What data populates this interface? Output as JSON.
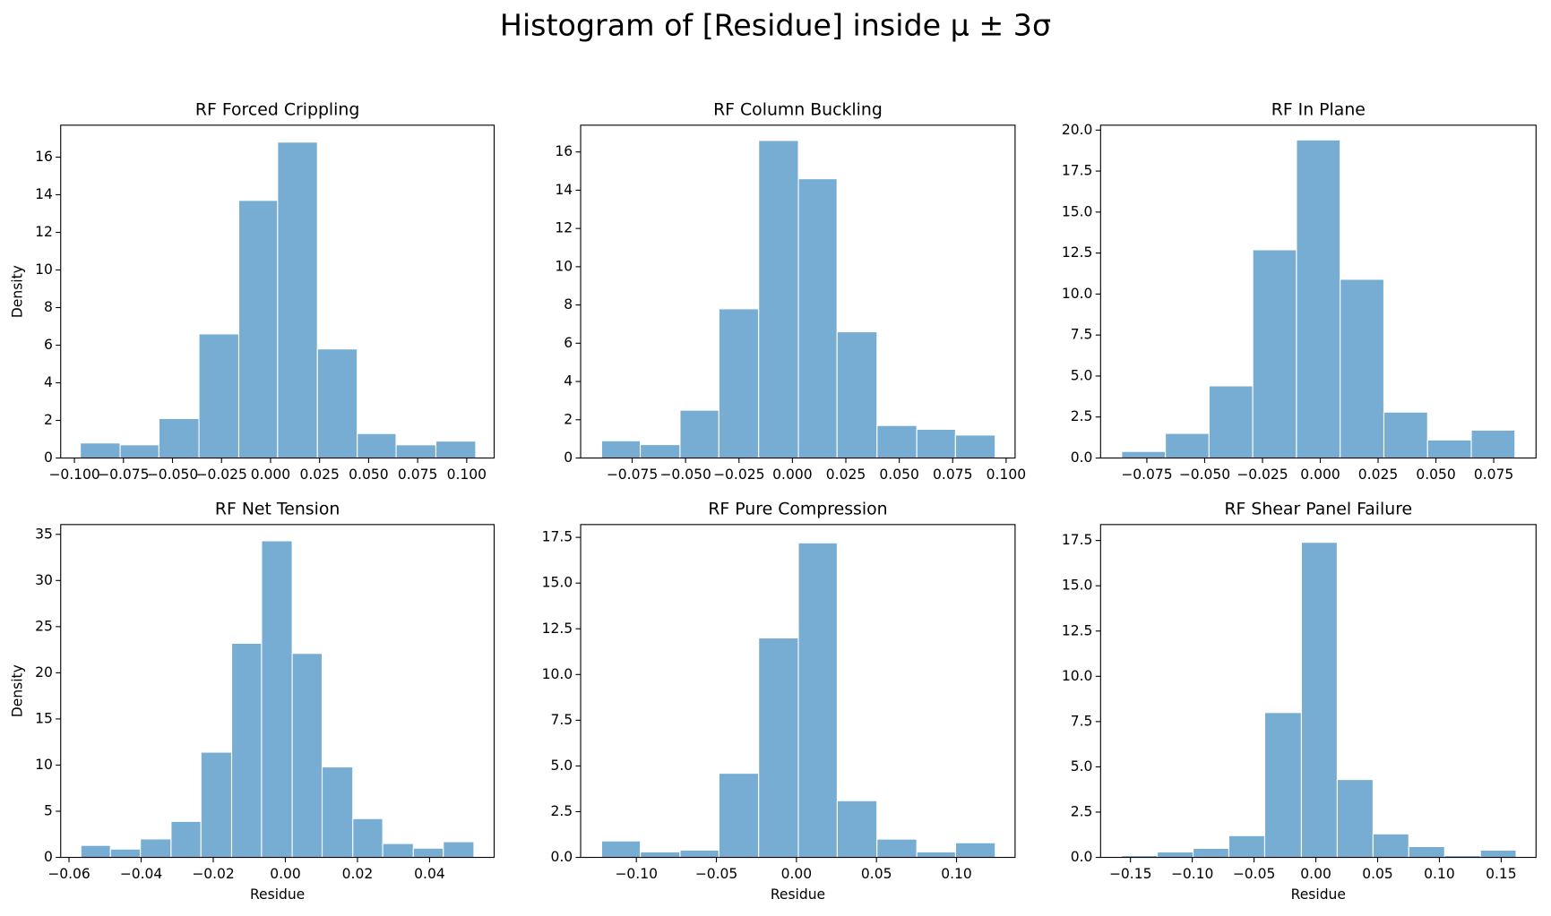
{
  "title": "Histogram of [Residue] inside μ ± 3σ",
  "chart_data": [
    {
      "type": "histogram",
      "title": "RF Forced Crippling",
      "ylabel": "Density",
      "color": "#77acd3",
      "bins": [
        -0.097,
        -0.0767,
        -0.0569,
        -0.0365,
        -0.0162,
        0.0036,
        0.0239,
        0.0442,
        0.064,
        0.0843,
        0.1046
      ],
      "values": [
        0.8,
        0.7,
        2.1,
        6.6,
        13.7,
        16.8,
        5.8,
        1.3,
        0.7,
        0.9
      ],
      "xlim": [
        -0.107,
        0.114
      ],
      "ylim": [
        0,
        17.7
      ],
      "xticks": [
        {
          "value": -0.1,
          "label": "−0.100"
        },
        {
          "value": -0.075,
          "label": "−0.075"
        },
        {
          "value": -0.05,
          "label": "−0.050"
        },
        {
          "value": -0.025,
          "label": "−0.025"
        },
        {
          "value": 0,
          "label": "0.000"
        },
        {
          "value": 0.025,
          "label": "0.025"
        },
        {
          "value": 0.05,
          "label": "0.050"
        },
        {
          "value": 0.075,
          "label": "0.075"
        },
        {
          "value": 0.1,
          "label": "0.100"
        }
      ],
      "yticks": [
        0,
        2,
        4,
        6,
        8,
        10,
        12,
        14,
        16
      ]
    },
    {
      "type": "histogram",
      "title": "RF Column Buckling",
      "color": "#77acd3",
      "bins": [
        -0.0893,
        -0.0712,
        -0.0526,
        -0.0344,
        -0.0158,
        0.0028,
        0.0209,
        0.0396,
        0.0582,
        0.0763,
        0.0949
      ],
      "values": [
        0.9,
        0.7,
        2.5,
        7.8,
        16.6,
        14.6,
        6.6,
        1.7,
        1.5,
        1.2
      ],
      "xlim": [
        -0.0991,
        0.1042
      ],
      "ylim": [
        0,
        17.4
      ],
      "xticks": [
        {
          "value": -0.075,
          "label": "−0.075"
        },
        {
          "value": -0.05,
          "label": "−0.050"
        },
        {
          "value": -0.025,
          "label": "−0.025"
        },
        {
          "value": 0,
          "label": "0.000"
        },
        {
          "value": 0.025,
          "label": "0.025"
        },
        {
          "value": 0.05,
          "label": "0.050"
        },
        {
          "value": 0.075,
          "label": "0.075"
        },
        {
          "value": 0.1,
          "label": "0.100"
        }
      ],
      "yticks": [
        0,
        2,
        4,
        6,
        8,
        10,
        12,
        14,
        16
      ]
    },
    {
      "type": "histogram",
      "title": "RF In Plane",
      "color": "#77acd3",
      "bins": [
        -0.0859,
        -0.067,
        -0.0481,
        -0.0292,
        -0.0103,
        0.0086,
        0.0275,
        0.0464,
        0.0653,
        0.0842
      ],
      "values": [
        0.4,
        1.5,
        4.4,
        12.7,
        19.4,
        10.9,
        2.8,
        1.1,
        1.7
      ],
      "xlim": [
        -0.095,
        0.0933
      ],
      "ylim": [
        0,
        20.3
      ],
      "xticks": [
        {
          "value": -0.075,
          "label": "−0.075"
        },
        {
          "value": -0.05,
          "label": "−0.050"
        },
        {
          "value": -0.025,
          "label": "−0.025"
        },
        {
          "value": 0,
          "label": "0.000"
        },
        {
          "value": 0.025,
          "label": "0.025"
        },
        {
          "value": 0.05,
          "label": "0.050"
        },
        {
          "value": 0.075,
          "label": "0.075"
        }
      ],
      "yticks": [
        {
          "value": 0,
          "label": "0.0"
        },
        {
          "value": 2.5,
          "label": "2.5"
        },
        {
          "value": 5,
          "label": "5.0"
        },
        {
          "value": 7.5,
          "label": "7.5"
        },
        {
          "value": 10,
          "label": "10.0"
        },
        {
          "value": 12.5,
          "label": "12.5"
        },
        {
          "value": 15,
          "label": "15.0"
        },
        {
          "value": 17.5,
          "label": "17.5"
        },
        {
          "value": 20,
          "label": "20.0"
        }
      ]
    },
    {
      "type": "histogram",
      "title": "RF Net Tension",
      "xlabel": "Residue",
      "ylabel": "Density",
      "color": "#77acd3",
      "bins": [
        -0.0567,
        -0.0485,
        -0.0402,
        -0.0317,
        -0.0234,
        -0.0149,
        -0.0066,
        0.0019,
        0.0102,
        0.0187,
        0.027,
        0.0355,
        0.0438,
        0.0523
      ],
      "values": [
        1.3,
        0.9,
        2.0,
        3.9,
        11.4,
        23.2,
        34.3,
        22.1,
        9.8,
        4.2,
        1.5,
        1.0,
        1.7
      ],
      "xlim": [
        -0.0623,
        0.0579
      ],
      "ylim": [
        0,
        36.06
      ],
      "xticks": [
        {
          "value": -0.06,
          "label": "−0.06"
        },
        {
          "value": -0.04,
          "label": "−0.04"
        },
        {
          "value": -0.02,
          "label": "−0.02"
        },
        {
          "value": 0,
          "label": "0.00"
        },
        {
          "value": 0.02,
          "label": "0.02"
        },
        {
          "value": 0.04,
          "label": "0.04"
        }
      ],
      "yticks": [
        0,
        5,
        10,
        15,
        20,
        25,
        30,
        35
      ]
    },
    {
      "type": "histogram",
      "title": "RF Pure Compression",
      "xlabel": "Residue",
      "color": "#77acd3",
      "bins": [
        -0.1217,
        -0.0975,
        -0.0727,
        -0.0484,
        -0.0236,
        0.0012,
        0.0255,
        0.0503,
        0.0752,
        0.0994,
        0.1242
      ],
      "values": [
        0.9,
        0.3,
        0.4,
        4.6,
        12.0,
        17.2,
        3.1,
        1.0,
        0.3,
        0.8
      ],
      "xlim": [
        -0.1348,
        0.1366
      ],
      "ylim": [
        0,
        18.2
      ],
      "xticks": [
        {
          "value": -0.1,
          "label": "−0.10"
        },
        {
          "value": -0.05,
          "label": "−0.05"
        },
        {
          "value": 0,
          "label": "0.00"
        },
        {
          "value": 0.05,
          "label": "0.05"
        },
        {
          "value": 0.1,
          "label": "0.10"
        }
      ],
      "yticks": [
        {
          "value": 0,
          "label": "0.0"
        },
        {
          "value": 2.5,
          "label": "2.5"
        },
        {
          "value": 5,
          "label": "5.0"
        },
        {
          "value": 7.5,
          "label": "7.5"
        },
        {
          "value": 10,
          "label": "10.0"
        },
        {
          "value": 12.5,
          "label": "12.5"
        },
        {
          "value": 15,
          "label": "15.0"
        },
        {
          "value": 17.5,
          "label": "17.5"
        }
      ]
    },
    {
      "type": "histogram",
      "title": "RF Shear Panel Failure",
      "xlabel": "Residue",
      "color": "#77acd3",
      "bins": [
        -0.1573,
        -0.1283,
        -0.0993,
        -0.0704,
        -0.0414,
        -0.0117,
        0.0173,
        0.0463,
        0.0752,
        0.1042,
        0.1332,
        0.1621
      ],
      "values": [
        0.1,
        0.3,
        0.5,
        1.2,
        8.0,
        17.4,
        4.3,
        1.3,
        0.6,
        0.1,
        0.4
      ],
      "xlim": [
        -0.1742,
        0.1782
      ],
      "ylim": [
        0,
        18.38
      ],
      "xticks": [
        {
          "value": -0.15,
          "label": "−0.15"
        },
        {
          "value": -0.1,
          "label": "−0.10"
        },
        {
          "value": -0.05,
          "label": "−0.05"
        },
        {
          "value": 0,
          "label": "0.00"
        },
        {
          "value": 0.05,
          "label": "0.05"
        },
        {
          "value": 0.1,
          "label": "0.10"
        },
        {
          "value": 0.15,
          "label": "0.15"
        }
      ],
      "yticks": [
        {
          "value": 0,
          "label": "0.0"
        },
        {
          "value": 2.5,
          "label": "2.5"
        },
        {
          "value": 5,
          "label": "5.0"
        },
        {
          "value": 7.5,
          "label": "7.5"
        },
        {
          "value": 10,
          "label": "10.0"
        },
        {
          "value": 12.5,
          "label": "12.5"
        },
        {
          "value": 15,
          "label": "15.0"
        },
        {
          "value": 17.5,
          "label": "17.5"
        }
      ]
    }
  ]
}
